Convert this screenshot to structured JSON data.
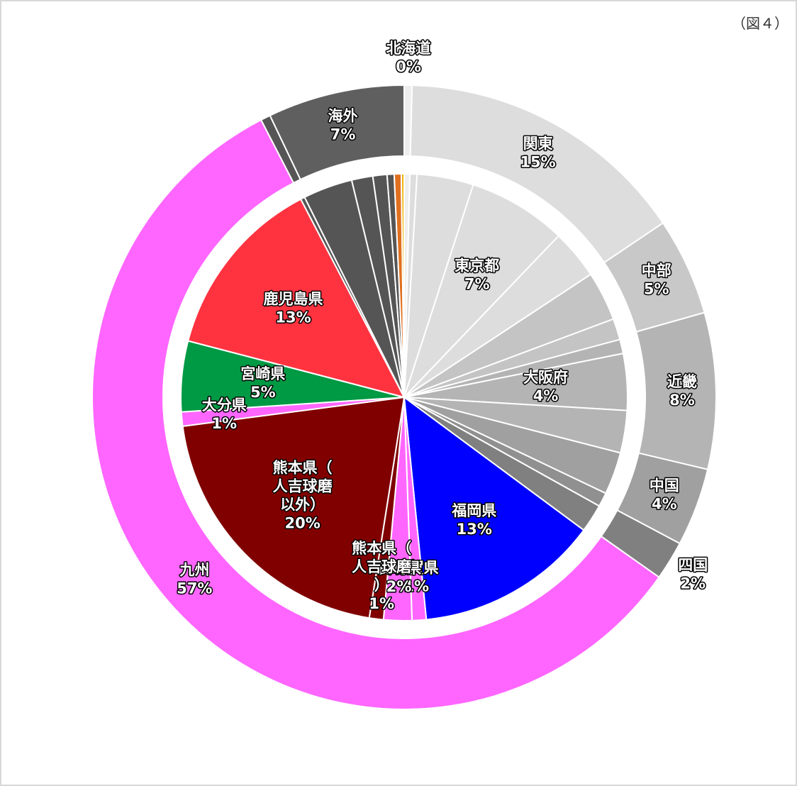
{
  "chart_data": {
    "type": "pie",
    "title": "（図４）",
    "rings": [
      {
        "categories": [
          "北海道",
          "関東",
          "中部",
          "近畿",
          "中国",
          "四国",
          "九州",
          null,
          "海外"
        ],
        "values": [
          0.4,
          15,
          5,
          8,
          4,
          2,
          57,
          0.5,
          7
        ],
        "value_labels": [
          "0%",
          "15%",
          "5%",
          "8%",
          "4%",
          "2%",
          "57%",
          null,
          "7%"
        ],
        "colors": [
          "#eeeeee",
          "#dddddd",
          "#c8c8c8",
          "#b4b4b4",
          "#a0a0a0",
          "#808080",
          "#ff66ff",
          "#555555",
          "#5f5f5f"
        ]
      },
      {
        "categories": [
          null,
          null,
          null,
          "東京都",
          null,
          null,
          null,
          null,
          "大阪府",
          null,
          null,
          null,
          null,
          "福岡県",
          "佐賀県",
          "長崎県",
          "熊本県（人吉球磨）",
          "熊本県（人吉球磨以外）",
          "大分県",
          "宮崎県",
          "鹿児島県",
          null,
          null,
          null,
          null,
          null,
          null,
          null
        ],
        "values": [
          0.4,
          0.5,
          4,
          7,
          3.5,
          3.5,
          1.5,
          1,
          4,
          3,
          3,
          1,
          2,
          13,
          1,
          2,
          1,
          20,
          1,
          5,
          13,
          0.3,
          3.5,
          1.5,
          1,
          0.5,
          0.5,
          0.2
        ],
        "value_labels": [
          null,
          null,
          null,
          "7%",
          null,
          null,
          null,
          null,
          "4%",
          null,
          null,
          null,
          null,
          "13%",
          "1%",
          "2%",
          "1%",
          "20%",
          "1%",
          "5%",
          "13%",
          null,
          null,
          null,
          null,
          null,
          null,
          null
        ],
        "colors": [
          "#eeeeee",
          "#dddddd",
          "#dddddd",
          "#dddddd",
          "#dddddd",
          "#c4c4c4",
          "#c4c4c4",
          "#b4b4b4",
          "#b4b4b4",
          "#b4b4b4",
          "#a0a0a0",
          "#909090",
          "#808080",
          "#0000ff",
          "#ff66ff",
          "#ff66ff",
          "#800000",
          "#800000",
          "#ff66ff",
          "#009944",
          "#ff3340",
          "#555555",
          "#555555",
          "#555555",
          "#555555",
          "#555555",
          "#e07020",
          "#f0b000"
        ]
      }
    ]
  }
}
